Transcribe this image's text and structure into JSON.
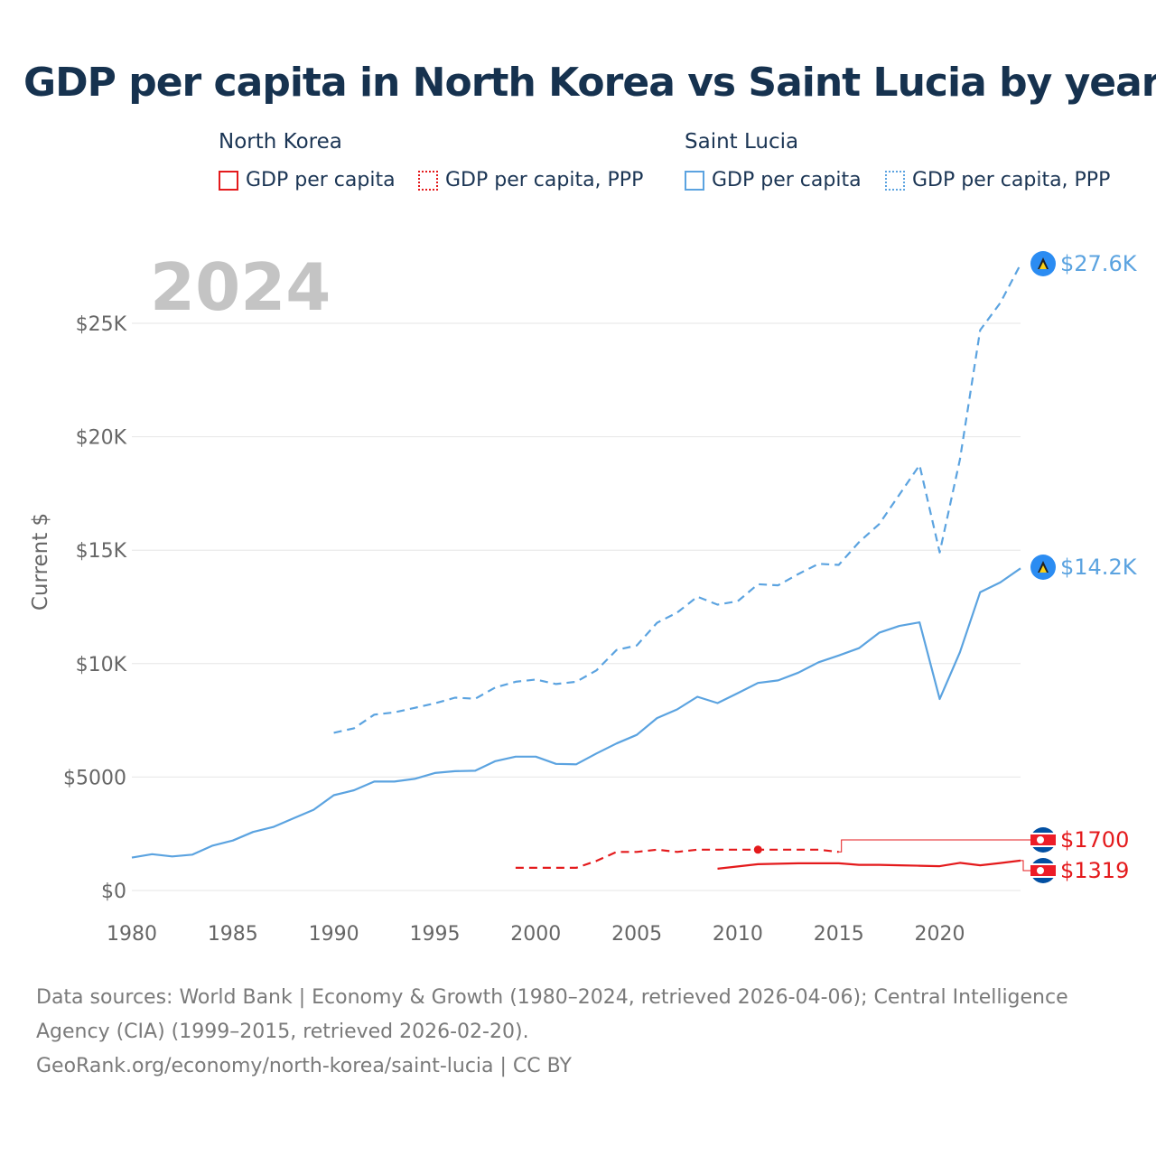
{
  "title": "GDP per capita in North Korea vs Saint Lucia by year",
  "legend": {
    "north_korea": {
      "title": "North Korea",
      "gdp": "GDP per capita",
      "ppp": "GDP per capita, PPP"
    },
    "saint_lucia": {
      "title": "Saint Lucia",
      "gdp": "GDP per capita",
      "ppp": "GDP per capita, PPP"
    }
  },
  "year_watermark": "2024",
  "colors": {
    "north_korea": "#e41a1c",
    "saint_lucia": "#5ba3e0",
    "grid": "#e6e6e6",
    "axis_text": "#666666"
  },
  "footer": {
    "sources": "Data sources: World Bank | Economy & Growth (1980–2024, retrieved 2026-04-06); Central Intelligence Agency (CIA) (1999–2015, retrieved 2026-02-20).",
    "credit": "GeoRank.org/economy/north-korea/saint-lucia | CC BY"
  },
  "chart_data": {
    "type": "line",
    "title": "GDP per capita in North Korea vs Saint Lucia by year",
    "xlabel": "",
    "ylabel": "Current $",
    "xlim": [
      1980,
      2024
    ],
    "ylim": [
      0,
      28000
    ],
    "x_ticks": [
      1980,
      1985,
      1990,
      1995,
      2000,
      2005,
      2010,
      2015,
      2020
    ],
    "x_tick_labels": [
      "1980",
      "1985",
      "1990",
      "1995",
      "2000",
      "2005",
      "2010",
      "2015",
      "2020"
    ],
    "y_ticks": [
      0,
      5000,
      10000,
      15000,
      20000,
      25000
    ],
    "y_tick_labels": [
      "$0",
      "$5000",
      "$10K",
      "$15K",
      "$20K",
      "$25K"
    ],
    "series": [
      {
        "name": "Saint Lucia GDP per capita, PPP",
        "country": "saint_lucia",
        "style": "dashed",
        "x": [
          1990,
          1991,
          1992,
          1993,
          1994,
          1995,
          1996,
          1997,
          1998,
          1999,
          2000,
          2001,
          2002,
          2003,
          2004,
          2005,
          2006,
          2007,
          2008,
          2009,
          2010,
          2011,
          2012,
          2013,
          2014,
          2015,
          2016,
          2017,
          2018,
          2019,
          2020,
          2021,
          2022,
          2023,
          2024
        ],
        "values": [
          6950,
          7150,
          7750,
          7850,
          8050,
          8250,
          8500,
          8450,
          8950,
          9200,
          9300,
          9100,
          9200,
          9700,
          10600,
          10800,
          11800,
          12250,
          12950,
          12600,
          12750,
          13500,
          13450,
          13950,
          14400,
          14350,
          15350,
          16150,
          17450,
          18750,
          14900,
          19000,
          24700,
          25900,
          27600
        ],
        "end_label": "$27.6K"
      },
      {
        "name": "Saint Lucia GDP per capita",
        "country": "saint_lucia",
        "style": "solid",
        "x": [
          1980,
          1981,
          1982,
          1983,
          1984,
          1985,
          1986,
          1987,
          1988,
          1989,
          1990,
          1991,
          1992,
          1993,
          1994,
          1995,
          1996,
          1997,
          1998,
          1999,
          2000,
          2001,
          2002,
          2003,
          2004,
          2005,
          2006,
          2007,
          2008,
          2009,
          2010,
          2011,
          2012,
          2013,
          2014,
          2015,
          2016,
          2017,
          2018,
          2019,
          2020,
          2021,
          2022,
          2023,
          2024
        ],
        "values": [
          1450,
          1600,
          1500,
          1580,
          1980,
          2200,
          2580,
          2800,
          3180,
          3560,
          4200,
          4420,
          4800,
          4800,
          4920,
          5180,
          5260,
          5280,
          5700,
          5900,
          5900,
          5580,
          5560,
          6040,
          6480,
          6860,
          7600,
          7980,
          8540,
          8260,
          8700,
          9150,
          9260,
          9600,
          10060,
          10360,
          10680,
          11360,
          11660,
          11820,
          8440,
          10500,
          13150,
          13580,
          14200
        ],
        "end_label": "$14.2K"
      },
      {
        "name": "North Korea GDP per capita, PPP",
        "country": "north_korea",
        "style": "dashed",
        "x": [
          1999,
          2000,
          2001,
          2002,
          2003,
          2004,
          2005,
          2006,
          2007,
          2008,
          2009,
          2010,
          2011,
          2012,
          2013,
          2014,
          2015
        ],
        "values": [
          1000,
          1000,
          1000,
          1000,
          1300,
          1700,
          1700,
          1800,
          1700,
          1800,
          1800,
          1800,
          1800,
          1800,
          1800,
          1800,
          1700
        ],
        "end_label": "$1700"
      },
      {
        "name": "North Korea GDP per capita",
        "country": "north_korea",
        "style": "solid",
        "x": [
          2009,
          2010,
          2011,
          2012,
          2013,
          2014,
          2015,
          2016,
          2017,
          2018,
          2019,
          2020,
          2021,
          2022,
          2023,
          2024
        ],
        "values": [
          960,
          1060,
          1160,
          1180,
          1200,
          1200,
          1200,
          1130,
          1130,
          1110,
          1090,
          1070,
          1220,
          1110,
          1210,
          1319
        ],
        "end_label": "$1319"
      }
    ],
    "highlight_point": {
      "series": "North Korea GDP per capita, PPP",
      "x": 2011,
      "y": 1800
    }
  }
}
